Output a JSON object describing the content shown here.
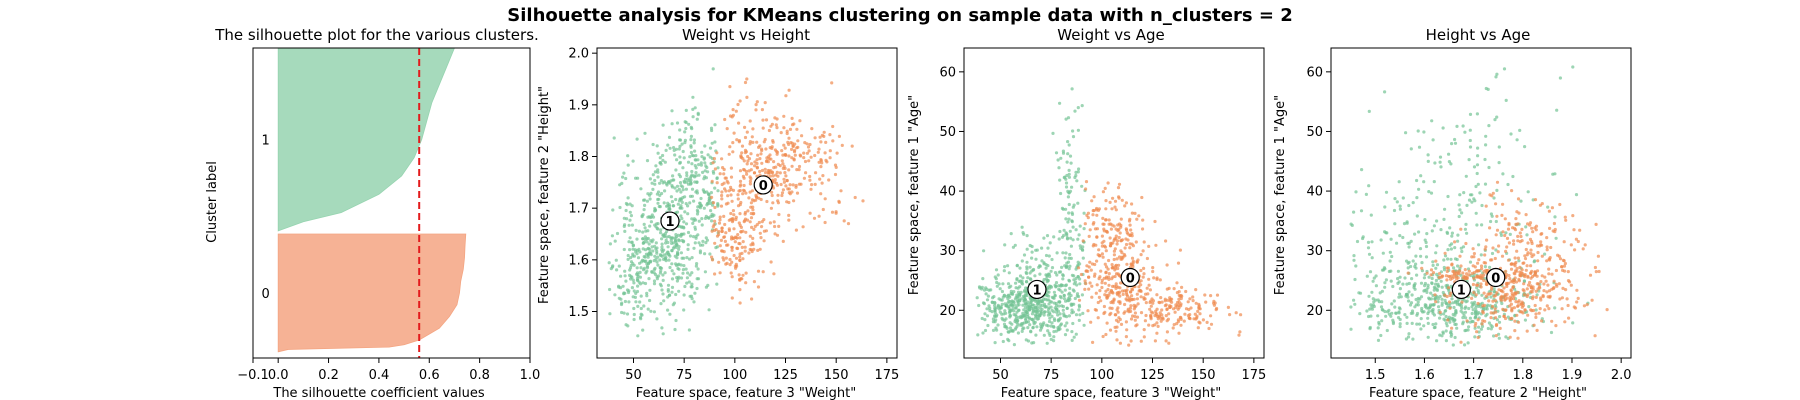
{
  "figure": {
    "suptitle": "Silhouette analysis for KMeans clustering on sample data with n_clusters = 2"
  },
  "colors": {
    "cluster_0": "#f4a582",
    "cluster_0_dark": "#f08a4f",
    "cluster_1": "#96d4b0",
    "cluster_1_dark": "#73c394",
    "silhouette_avg_line": "#e31a1c",
    "center_fill": "#ffffff",
    "axis": "#000000"
  },
  "chart_data": [
    {
      "id": "silhouette",
      "type": "area",
      "title": "The silhouette plot for the various clusters.",
      "xlabel": "The silhouette coefficient values",
      "ylabel": "Cluster label",
      "xlim": [
        -0.1,
        1.0
      ],
      "xticks": [
        -0.1,
        0.0,
        0.2,
        0.4,
        0.6,
        0.8,
        1.0
      ],
      "xtick_labels": [
        "−0.1",
        "0.0",
        "0.2",
        "0.4",
        "0.6",
        "0.8",
        "1.0"
      ],
      "ylim": [
        0,
        1
      ],
      "grid": false,
      "average_silhouette_score": 0.56,
      "clusters": [
        {
          "label": "0",
          "rank_range": [
            0.02,
            0.4
          ],
          "profile": [
            [
              0.02,
              0.04
            ],
            [
              0.04,
              0.44
            ],
            [
              0.06,
              0.5
            ],
            [
              0.1,
              0.56
            ],
            [
              0.2,
              0.64
            ],
            [
              0.3,
              0.68
            ],
            [
              0.4,
              0.71
            ],
            [
              0.5,
              0.72
            ],
            [
              0.6,
              0.725
            ],
            [
              0.7,
              0.735
            ],
            [
              0.8,
              0.74
            ],
            [
              0.9,
              0.742
            ],
            [
              1.0,
              0.745
            ]
          ]
        },
        {
          "label": "1",
          "rank_range": [
            0.41,
            1.0
          ],
          "profile": [
            [
              0.0,
              0.0
            ],
            [
              0.05,
              0.1
            ],
            [
              0.1,
              0.25
            ],
            [
              0.2,
              0.4
            ],
            [
              0.3,
              0.49
            ],
            [
              0.4,
              0.54
            ],
            [
              0.5,
              0.57
            ],
            [
              0.6,
              0.59
            ],
            [
              0.7,
              0.61
            ],
            [
              0.8,
              0.64
            ],
            [
              0.9,
              0.67
            ],
            [
              1.0,
              0.7
            ]
          ]
        }
      ]
    },
    {
      "id": "weight_height",
      "type": "scatter",
      "title": "Weight vs Height",
      "xlabel": "Feature space, feature 3 \"Weight\"",
      "ylabel": "Feature space, feature 2 \"Height\"",
      "xlim": [
        32,
        180
      ],
      "ylim": [
        1.41,
        2.01
      ],
      "xticks": [
        50,
        75,
        100,
        125,
        150,
        175
      ],
      "yticks": [
        1.5,
        1.6,
        1.7,
        1.8,
        1.9,
        2.0
      ],
      "ytick_labels": [
        "1.5",
        "1.6",
        "1.7",
        "1.8",
        "1.9",
        "2.0"
      ],
      "grid": false,
      "centers": [
        {
          "label": "0",
          "x": 114,
          "y": 1.745
        },
        {
          "label": "1",
          "x": 68,
          "y": 1.675
        }
      ],
      "clusters": [
        {
          "label": "1",
          "n": 760,
          "blobs": [
            {
              "w": 0.55,
              "x": 68,
              "sx": 13,
              "y": 1.66,
              "sy": 0.085
            },
            {
              "w": 0.25,
              "x": 55,
              "sx": 9,
              "y": 1.58,
              "sy": 0.05
            },
            {
              "w": 0.2,
              "x": 80,
              "sx": 8,
              "y": 1.76,
              "sy": 0.07
            }
          ],
          "xrange": [
            38,
            92
          ],
          "yrange": [
            1.45,
            1.98
          ]
        },
        {
          "label": "0",
          "n": 560,
          "blobs": [
            {
              "w": 0.45,
              "x": 110,
              "sx": 10,
              "y": 1.76,
              "sy": 0.07
            },
            {
              "w": 0.3,
              "x": 100,
              "sx": 7,
              "y": 1.64,
              "sy": 0.05
            },
            {
              "w": 0.25,
              "x": 132,
              "sx": 13,
              "y": 1.78,
              "sy": 0.05
            }
          ],
          "xrange": [
            88,
            175
          ],
          "yrange": [
            1.5,
            1.98
          ]
        }
      ]
    },
    {
      "id": "weight_age",
      "type": "scatter",
      "title": "Weight vs Age",
      "xlabel": "Feature space, feature 3 \"Weight\"",
      "ylabel": "Feature space, feature 1 \"Age\"",
      "xlim": [
        32,
        180
      ],
      "ylim": [
        12,
        64
      ],
      "xticks": [
        50,
        75,
        100,
        125,
        150,
        175
      ],
      "yticks": [
        20,
        30,
        40,
        50,
        60
      ],
      "grid": false,
      "centers": [
        {
          "label": "0",
          "x": 114,
          "y": 25.5
        },
        {
          "label": "1",
          "x": 68,
          "y": 23.5
        }
      ],
      "clusters": [
        {
          "label": "1",
          "n": 760,
          "blobs": [
            {
              "w": 0.55,
              "x": 62,
              "sx": 13,
              "y": 20.5,
              "sy": 2.5
            },
            {
              "w": 0.3,
              "x": 72,
              "sx": 10,
              "y": 24,
              "sy": 5
            },
            {
              "w": 0.15,
              "x": 85,
              "sx": 4,
              "y": 38,
              "sy": 8
            }
          ],
          "xrange": [
            38,
            92
          ],
          "yrange": [
            14,
            61
          ]
        },
        {
          "label": "0",
          "n": 560,
          "blobs": [
            {
              "w": 0.45,
              "x": 110,
              "sx": 11,
              "y": 24,
              "sy": 4
            },
            {
              "w": 0.3,
              "x": 105,
              "sx": 8,
              "y": 33,
              "sy": 5
            },
            {
              "w": 0.25,
              "x": 135,
              "sx": 12,
              "y": 20,
              "sy": 2
            }
          ],
          "xrange": [
            88,
            176
          ],
          "yrange": [
            14,
            42
          ]
        }
      ]
    },
    {
      "id": "height_age",
      "type": "scatter",
      "title": "Height vs Age",
      "xlabel": "Feature space, feature 2 \"Height\"",
      "ylabel": "Feature space, feature 1 \"Age\"",
      "xlim": [
        1.41,
        2.02
      ],
      "ylim": [
        12,
        64
      ],
      "xticks": [
        1.5,
        1.6,
        1.7,
        1.8,
        1.9,
        2.0
      ],
      "xtick_labels": [
        "1.5",
        "1.6",
        "1.7",
        "1.8",
        "1.9",
        "2.0"
      ],
      "yticks": [
        20,
        30,
        40,
        50,
        60
      ],
      "grid": false,
      "centers": [
        {
          "label": "0",
          "x": 1.745,
          "y": 25.5
        },
        {
          "label": "1",
          "x": 1.675,
          "y": 23.5
        }
      ],
      "clusters": [
        {
          "label": "1",
          "n": 760,
          "blobs": [
            {
              "w": 0.6,
              "x": 1.65,
              "sx": 0.09,
              "y": 21,
              "sy": 3
            },
            {
              "w": 0.25,
              "x": 1.62,
              "sx": 0.1,
              "y": 32,
              "sy": 6
            },
            {
              "w": 0.15,
              "x": 1.7,
              "sx": 0.08,
              "y": 45,
              "sy": 8
            }
          ],
          "xrange": [
            1.45,
            1.95
          ],
          "yrange": [
            14,
            61
          ]
        },
        {
          "label": "0",
          "n": 560,
          "blobs": [
            {
              "w": 0.5,
              "x": 1.78,
              "sx": 0.07,
              "y": 23,
              "sy": 3.5
            },
            {
              "w": 0.3,
              "x": 1.8,
              "sx": 0.06,
              "y": 30,
              "sy": 5
            },
            {
              "w": 0.2,
              "x": 1.72,
              "sx": 0.06,
              "y": 26,
              "sy": 0.6
            }
          ],
          "xrange": [
            1.55,
            1.98
          ],
          "yrange": [
            14,
            42
          ]
        }
      ]
    }
  ]
}
